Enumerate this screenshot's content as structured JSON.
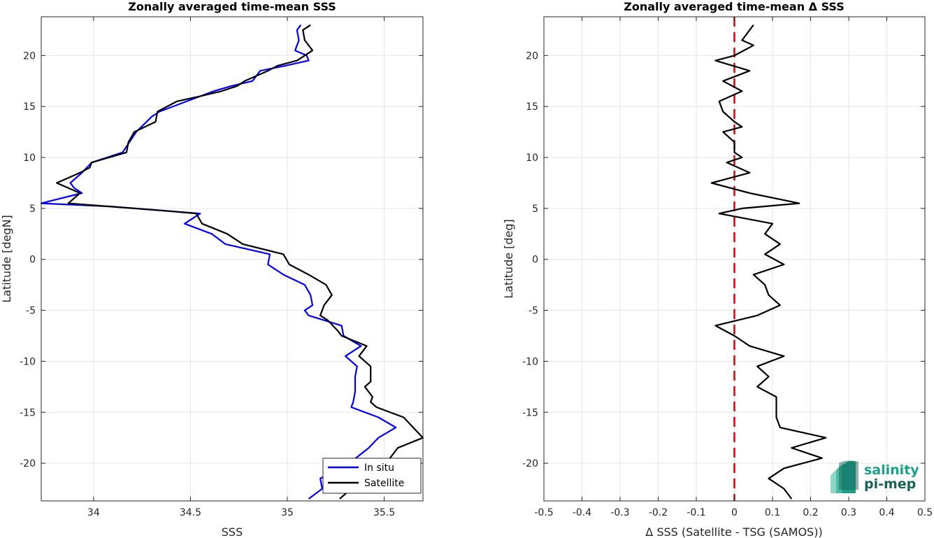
{
  "chart_data": [
    {
      "type": "line",
      "title": "Zonally averaged time-mean SSS",
      "xlabel": "SSS",
      "ylabel": "Latitude [degN]",
      "xlim": [
        33.73,
        35.7
      ],
      "ylim": [
        -23.7,
        23.8
      ],
      "xticks": [
        34,
        34.5,
        35,
        35.5
      ],
      "yticks": [
        -20,
        -15,
        -10,
        -5,
        0,
        5,
        10,
        15,
        20
      ],
      "grid": true,
      "legend_position": "bottom-right",
      "series": [
        {
          "name": "In situ",
          "color": "#0000ff",
          "points": [
            [
              35.07,
              23
            ],
            [
              35.05,
              22.5
            ],
            [
              35.06,
              21.5
            ],
            [
              35.05,
              21
            ],
            [
              35.04,
              20.5
            ],
            [
              35.1,
              20
            ],
            [
              35.11,
              19.5
            ],
            [
              34.99,
              19
            ],
            [
              34.86,
              18.5
            ],
            [
              34.82,
              17.5
            ],
            [
              34.71,
              17
            ],
            [
              34.62,
              16.5
            ],
            [
              34.48,
              15.5
            ],
            [
              34.34,
              14.5
            ],
            [
              34.3,
              14
            ],
            [
              34.22,
              12.5
            ],
            [
              34.15,
              10.5
            ],
            [
              33.99,
              9.5
            ],
            [
              33.94,
              8.5
            ],
            [
              33.88,
              7.5
            ],
            [
              33.9,
              7
            ],
            [
              33.94,
              6.5
            ],
            [
              33.73,
              5.5
            ],
            [
              34.08,
              5.2
            ],
            [
              34.55,
              4.5
            ],
            [
              34.47,
              3.5
            ],
            [
              34.61,
              2.5
            ],
            [
              34.68,
              1.5
            ],
            [
              34.91,
              0.5
            ],
            [
              34.9,
              -0.5
            ],
            [
              34.98,
              -1.5
            ],
            [
              35.09,
              -2.5
            ],
            [
              35.12,
              -3.5
            ],
            [
              35.13,
              -4.5
            ],
            [
              35.09,
              -5
            ],
            [
              35.11,
              -5.5
            ],
            [
              35.28,
              -6.5
            ],
            [
              35.29,
              -7.5
            ],
            [
              35.38,
              -8.5
            ],
            [
              35.3,
              -9.5
            ],
            [
              35.36,
              -10.5
            ],
            [
              35.35,
              -11.5
            ],
            [
              35.35,
              -13
            ],
            [
              35.34,
              -14
            ],
            [
              35.33,
              -14.5
            ],
            [
              35.47,
              -15.5
            ],
            [
              35.56,
              -16.5
            ],
            [
              35.47,
              -17.5
            ],
            [
              35.42,
              -18.5
            ],
            [
              35.32,
              -20
            ],
            [
              35.17,
              -21.5
            ],
            [
              35.18,
              -22.5
            ],
            [
              35.11,
              -23.5
            ]
          ]
        },
        {
          "name": "Satellite",
          "color": "#000000",
          "points": [
            [
              35.12,
              23
            ],
            [
              35.08,
              22.5
            ],
            [
              35.09,
              21.5
            ],
            [
              35.13,
              20.5
            ],
            [
              35.09,
              20
            ],
            [
              35.05,
              19.5
            ],
            [
              34.95,
              19
            ],
            [
              34.9,
              18.5
            ],
            [
              34.78,
              17.5
            ],
            [
              34.74,
              17
            ],
            [
              34.66,
              16.5
            ],
            [
              34.55,
              16
            ],
            [
              34.43,
              15.5
            ],
            [
              34.33,
              14.5
            ],
            [
              34.32,
              13.5
            ],
            [
              34.21,
              12.5
            ],
            [
              34.18,
              11.5
            ],
            [
              34.17,
              10.5
            ],
            [
              33.99,
              9.5
            ],
            [
              33.98,
              9
            ],
            [
              33.93,
              8.5
            ],
            [
              33.81,
              7.5
            ],
            [
              33.87,
              7
            ],
            [
              33.93,
              6.5
            ],
            [
              33.87,
              5.5
            ],
            [
              34.35,
              4.8
            ],
            [
              34.53,
              4.5
            ],
            [
              34.56,
              3.5
            ],
            [
              34.69,
              2.5
            ],
            [
              34.77,
              1.5
            ],
            [
              34.98,
              0.5
            ],
            [
              35.01,
              -0.5
            ],
            [
              35.11,
              -1.5
            ],
            [
              35.2,
              -2.5
            ],
            [
              35.23,
              -3.5
            ],
            [
              35.19,
              -4.5
            ],
            [
              35.17,
              -5.5
            ],
            [
              35.21,
              -6
            ],
            [
              35.26,
              -7
            ],
            [
              35.28,
              -7.5
            ],
            [
              35.41,
              -8.5
            ],
            [
              35.37,
              -9.5
            ],
            [
              35.43,
              -10.5
            ],
            [
              35.43,
              -12
            ],
            [
              35.4,
              -12.5
            ],
            [
              35.44,
              -13.5
            ],
            [
              35.43,
              -14
            ],
            [
              35.46,
              -14.5
            ],
            [
              35.6,
              -15.5
            ],
            [
              35.65,
              -16.5
            ],
            [
              35.7,
              -17.5
            ],
            [
              35.57,
              -18.5
            ],
            [
              35.51,
              -20
            ],
            [
              35.37,
              -21
            ],
            [
              35.33,
              -22.5
            ],
            [
              35.27,
              -23.5
            ]
          ]
        }
      ]
    },
    {
      "type": "line",
      "title": "Zonally averaged time-mean Δ SSS",
      "xlabel": "Δ SSS (Satellite - TSG (SAMOS))",
      "ylabel": "Latitude [deg]",
      "xlim": [
        -0.5,
        0.5
      ],
      "ylim": [
        -23.7,
        23.8
      ],
      "xticks": [
        -0.5,
        -0.4,
        -0.3,
        -0.2,
        -0.1,
        0,
        0.1,
        0.2,
        0.3,
        0.4,
        0.5
      ],
      "yticks": [
        -20,
        -15,
        -10,
        -5,
        0,
        5,
        10,
        15,
        20
      ],
      "grid": true,
      "reference_line": {
        "x": 0,
        "color": "#e00000",
        "style": "dashed"
      },
      "series": [
        {
          "name": "",
          "color": "#000000",
          "points": [
            [
              0.05,
              23
            ],
            [
              0.04,
              22.5
            ],
            [
              0.02,
              21.5
            ],
            [
              0.05,
              21
            ],
            [
              0,
              20
            ],
            [
              -0.05,
              19.5
            ],
            [
              0.04,
              18.5
            ],
            [
              -0.03,
              17.5
            ],
            [
              0.02,
              16.5
            ],
            [
              -0.04,
              15.5
            ],
            [
              -0.03,
              14.5
            ],
            [
              0,
              13.5
            ],
            [
              0.02,
              13
            ],
            [
              -0.03,
              12.5
            ],
            [
              0,
              11.5
            ],
            [
              0,
              10.5
            ],
            [
              0.02,
              10
            ],
            [
              -0.02,
              9.5
            ],
            [
              0.04,
              8.5
            ],
            [
              -0.06,
              7.5
            ],
            [
              0.04,
              6.5
            ],
            [
              0.17,
              5.5
            ],
            [
              0.02,
              5
            ],
            [
              -0.04,
              4.5
            ],
            [
              0.1,
              3.5
            ],
            [
              0.08,
              2.5
            ],
            [
              0.12,
              1.5
            ],
            [
              0.08,
              0.5
            ],
            [
              0.13,
              -0.5
            ],
            [
              0.05,
              -1.5
            ],
            [
              0.08,
              -2.5
            ],
            [
              0.09,
              -3.5
            ],
            [
              0.12,
              -4.5
            ],
            [
              0.06,
              -5.5
            ],
            [
              -0.05,
              -6.5
            ],
            [
              0,
              -7.5
            ],
            [
              0.04,
              -8.5
            ],
            [
              0.13,
              -9.5
            ],
            [
              0.06,
              -10.5
            ],
            [
              0.09,
              -11.5
            ],
            [
              0.06,
              -12.5
            ],
            [
              0.11,
              -13.5
            ],
            [
              0.11,
              -14.5
            ],
            [
              0.11,
              -15.5
            ],
            [
              0.12,
              -16.5
            ],
            [
              0.24,
              -17.5
            ],
            [
              0.15,
              -18.5
            ],
            [
              0.23,
              -19.5
            ],
            [
              0.13,
              -20.5
            ],
            [
              0.09,
              -21.5
            ],
            [
              0.13,
              -22.5
            ],
            [
              0.15,
              -23.5
            ]
          ]
        }
      ]
    }
  ],
  "logo": {
    "line1": "salinity",
    "line2": "pi-mep"
  },
  "colors": {
    "logo_teal": "#1aa18c",
    "logo_dark": "#176356",
    "grid": "#e6e6e6",
    "axis": "#262626"
  }
}
